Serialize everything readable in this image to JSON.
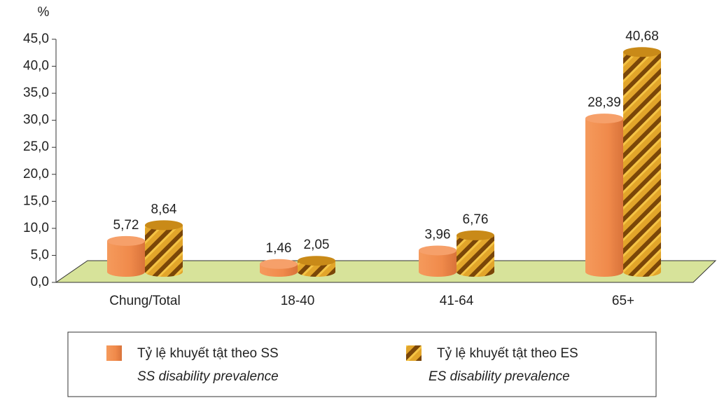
{
  "chart_data": {
    "type": "bar",
    "y_label": "%",
    "categories": [
      "Chung/Total",
      "18-40",
      "41-64",
      "65+"
    ],
    "series": [
      {
        "name": "Tỷ lệ khuyết tật theo SS",
        "name_en": "SS disability prevalence",
        "color": "#f08a4b",
        "values": [
          5.72,
          1.46,
          3.96,
          28.39
        ],
        "value_labels": [
          "5,72",
          "1,46",
          "3,96",
          "28,39"
        ]
      },
      {
        "name": "Tỷ lệ khuyết tật theo ES",
        "name_en": "ES disability prevalence",
        "color": "#d99a1c",
        "values": [
          8.64,
          2.05,
          6.76,
          40.68
        ],
        "value_labels": [
          "8,64",
          "2,05",
          "6,76",
          "40,68"
        ]
      }
    ],
    "ylim": [
      0,
      45
    ],
    "yticks": [
      {
        "value": 0,
        "label": "0,0"
      },
      {
        "value": 5,
        "label": "5,0"
      },
      {
        "value": 10,
        "label": "10,0"
      },
      {
        "value": 15,
        "label": "15,0"
      },
      {
        "value": 20,
        "label": "20,0"
      },
      {
        "value": 25,
        "label": "25,0"
      },
      {
        "value": 30,
        "label": "30,0"
      },
      {
        "value": 35,
        "label": "35,0"
      },
      {
        "value": 40,
        "label": "40,0"
      },
      {
        "value": 45,
        "label": "45,0"
      }
    ]
  }
}
